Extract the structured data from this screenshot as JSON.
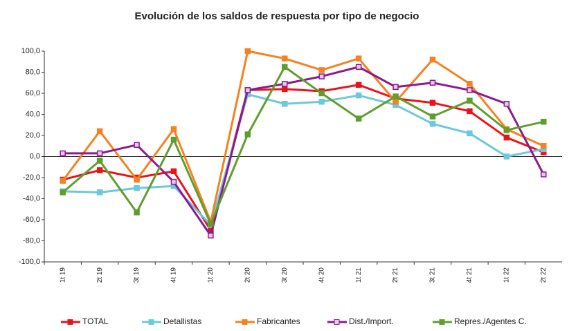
{
  "chart_data": {
    "type": "line",
    "title": "Evolución de los saldos de respuesta por tipo de negocio",
    "categories": [
      "1t 19",
      "2t 19",
      "3t 19",
      "4t 19",
      "1t 20",
      "2t 20",
      "3t 20",
      "4t 20",
      "1t 21",
      "2t 21",
      "3t 21",
      "4t 21",
      "1t 22",
      "2t 22"
    ],
    "series": [
      {
        "name": "TOTAL",
        "color": "#e8141b",
        "values": [
          -22,
          -13,
          -20,
          -14,
          -70,
          63,
          64,
          62,
          68,
          55,
          51,
          43,
          18,
          4
        ]
      },
      {
        "name": "Detallistas",
        "color": "#6cc8dc",
        "values": [
          -33,
          -34,
          -30,
          -28,
          -65,
          59,
          50,
          52,
          58,
          49,
          31,
          22,
          0,
          7
        ]
      },
      {
        "name": "Fabricantes",
        "color": "#f5821f",
        "values": [
          -23,
          24,
          -22,
          26,
          -62,
          100,
          93,
          82,
          93,
          52,
          92,
          69,
          26,
          10
        ]
      },
      {
        "name": "Dist./Import.",
        "color": "#8b1a8f",
        "values": [
          3,
          3,
          11,
          -24,
          -75,
          63,
          69,
          76,
          85,
          66,
          70,
          63,
          50,
          -17
        ]
      },
      {
        "name": "Repres./Agentes C.",
        "color": "#5f9e2e",
        "values": [
          -34,
          -4,
          -53,
          16,
          -64,
          21,
          85,
          60,
          36,
          57,
          38,
          53,
          25,
          33
        ]
      }
    ],
    "ylim": [
      -100,
      100
    ],
    "yticks": [
      {
        "value": -100,
        "label": "-100,0"
      },
      {
        "value": -80,
        "label": "-80,0"
      },
      {
        "value": -60,
        "label": "-60,0"
      },
      {
        "value": -40,
        "label": "-40,0"
      },
      {
        "value": -20,
        "label": "-20,0"
      },
      {
        "value": 0,
        "label": "0,0"
      },
      {
        "value": 20,
        "label": "20,0"
      },
      {
        "value": 40,
        "label": "40,0"
      },
      {
        "value": 60,
        "label": "60,0"
      },
      {
        "value": 80,
        "label": "80,0"
      },
      {
        "value": 100,
        "label": "100,0"
      }
    ],
    "legend": "bottom"
  }
}
